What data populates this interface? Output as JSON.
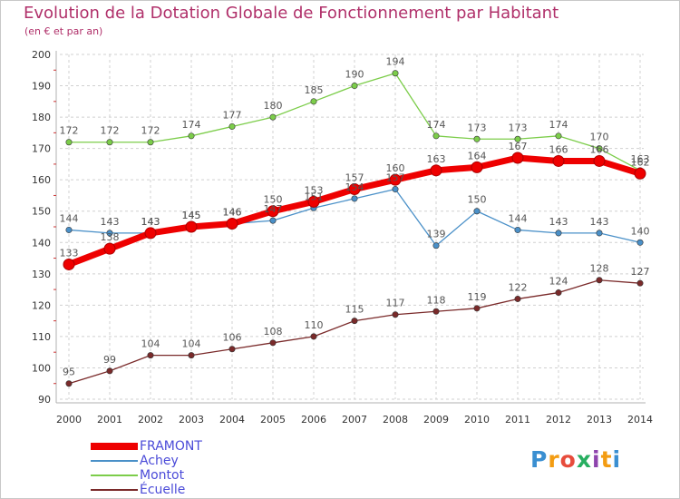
{
  "title": "Evolution de la Dotation Globale de Fonctionnement par Habitant",
  "subtitle": "(en € et par an)",
  "logo": {
    "text": "Proxiti",
    "colors": [
      "#3a8fd1",
      "#f39c12",
      "#e74c3c",
      "#27ae60",
      "#8e44ad",
      "#f39c12",
      "#3a8fd1"
    ]
  },
  "colors": {
    "grid": "#d0d0d0",
    "axis": "#b0b0b0",
    "tick_text": "#333333",
    "label_text": "#555555"
  },
  "chart_data": {
    "type": "line",
    "x": [
      2000,
      2001,
      2002,
      2003,
      2004,
      2005,
      2006,
      2007,
      2008,
      2009,
      2010,
      2011,
      2012,
      2013,
      2014
    ],
    "ylim": [
      90,
      200
    ],
    "yticks": [
      90,
      100,
      110,
      120,
      130,
      140,
      150,
      160,
      170,
      180,
      190,
      200
    ],
    "grid": true,
    "legend_position": "bottom-left",
    "series": [
      {
        "name": "FRAMONT",
        "color": "#ee0000",
        "values": [
          133,
          138,
          143,
          145,
          146,
          150,
          153,
          157,
          160,
          163,
          164,
          167,
          166,
          166,
          162
        ]
      },
      {
        "name": "Achey",
        "color": "#4a90c8",
        "values": [
          144,
          143,
          143,
          145,
          146,
          147,
          151,
          154,
          157,
          139,
          150,
          144,
          143,
          143,
          140
        ]
      },
      {
        "name": "Montot",
        "color": "#7ccd4a",
        "values": [
          172,
          172,
          172,
          174,
          177,
          180,
          185,
          190,
          194,
          174,
          173,
          173,
          174,
          170,
          163
        ]
      },
      {
        "name": "Écuelle",
        "color": "#7a2a2a",
        "values": [
          95,
          99,
          104,
          104,
          106,
          108,
          110,
          115,
          117,
          118,
          119,
          122,
          124,
          128,
          127
        ]
      }
    ]
  }
}
